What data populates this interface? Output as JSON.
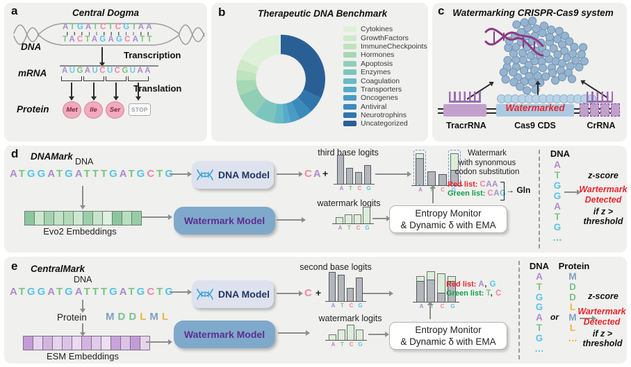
{
  "palette": {
    "A": "#ab8ccb",
    "T": "#7cc47f",
    "G": "#58c4e8",
    "C": "#f0879f",
    "U": "#6fc8e8",
    "M": "#7f9fc0",
    "D": "#7cbf8e",
    "L": "#f0b441",
    "default": "#333333"
  },
  "palette_rna": {
    "A": "#ab8ccb",
    "U": "#6fc8e8",
    "G": "#7cc47f",
    "C": "#f0879f",
    "default": "#333333"
  },
  "panel_a": {
    "label": "a",
    "title": "Central Dogma",
    "dna_label": "DNA",
    "transcription_label": "Transcription",
    "mrna_label": "mRNA",
    "translation_label": "Translation",
    "protein_label": "Protein",
    "dna_top": "ATGATCTCGTAA",
    "dna_bottom": "TACTAGAGCATT",
    "mrna": "AUGAUCUCGUAA",
    "amino_acids": [
      "Met",
      "Ile",
      "Ser"
    ],
    "stop_label": "STOP"
  },
  "panel_b": {
    "label": "b",
    "title": "Therapeutic DNA Benchmark"
  },
  "panel_c": {
    "label": "c",
    "title": "Watermarking CRISPR-Cas9 system",
    "watermarked_label": "Watermarked",
    "tracr_label": "TracrRNA",
    "cas9_label": "Cas9 CDS",
    "cr_label": "CrRNA"
  },
  "panel_d": {
    "label": "d",
    "title": "DNAMark",
    "dna_label": "DNA",
    "sequence": "ATGGATGATTTGATGCTG",
    "embeddings_label": "Evo2 Embeddings",
    "embedding_colors": [
      "#8cc69c",
      "#cde8d1",
      "#a3d3af",
      "#c0e2c5",
      "#b1dbba",
      "#cde8d1",
      "#9bcfa8",
      "#c6e5ca",
      "#def0e0",
      "#8cc69c",
      "#b8dfc0",
      "#97cda5"
    ],
    "dna_model_label": "DNA Model",
    "watermark_model_label": "Watermark Model",
    "prefix": "CA",
    "plus": "+",
    "entropy_line1": "Entropy Monitor",
    "entropy_line2": "& Dynamic δ with EMA",
    "note_line1": "Watermark",
    "note_line2": "with synonmous",
    "note_line3": "codon substitution",
    "red_list_label": "Red list:",
    "red_list": "CAA",
    "green_list_label": "Green list:",
    "green_list": "CAG",
    "gln_arrow": "→",
    "gln_label": "Gln",
    "out_dna_label": "DNA",
    "out_sequence": "ATGGATG…",
    "zscore_label": "z-score",
    "detected_line1": "Wartermark",
    "detected_line2": "Detected",
    "cond_line1": "if z >",
    "cond_line2": "threshold"
  },
  "panel_e": {
    "label": "e",
    "title": "CentralMark",
    "dna_label": "DNA",
    "protein_label": "Protein",
    "sequence": "ATGGATGATTTGATGCTG",
    "protein_sequence": "MDDLML",
    "embeddings_label": "ESM Embeddings",
    "embedding_colors": [
      "#c49bd6",
      "#e6d4ee",
      "#d3b4e0",
      "#e6d4ee",
      "#dcc3e8",
      "#e9daf0",
      "#d3b4e0",
      "#e0cbe9",
      "#ecdff2",
      "#c9a3da",
      "#dcc3e8",
      "#c49bd6",
      "#e6d4ee"
    ],
    "dna_model_label": "DNA Model",
    "watermark_model_label": "Watermark Model",
    "prefix": "C",
    "plus": "+",
    "entropy_line1": "Entropy Monitor",
    "entropy_line2": "& Dynamic δ with EMA",
    "red_list_label": "Red list:",
    "red_list": "A, G",
    "green_list_label": "Green list:",
    "green_list": "T, C",
    "out_dna_label": "DNA",
    "out_protein_label": "Protein",
    "out_dna_sequence": "ATGGATG…",
    "or_label": "or",
    "out_protein_sequence": "MDDLML…",
    "zscore_label": "z-score",
    "detected_line1": "Wartermark",
    "detected_line2": "Detected",
    "cond_line1": "if z >",
    "cond_line2": "threshold"
  },
  "chart_data": [
    {
      "id": "benchmark_donut",
      "type": "pie",
      "subtype": "donut",
      "title": "Therapeutic DNA Benchmark",
      "categories": [
        "Cytokines",
        "GrowthFactors",
        "ImmuneCheckpoints",
        "Hormones",
        "Apoptosis",
        "Enzymes",
        "Coagulation",
        "Transporters",
        "Oncogenes",
        "Antiviral",
        "Neurotrophins",
        "Uncategorized"
      ],
      "values_percent": [
        17.5,
        4,
        4,
        5.5,
        9,
        7.5,
        3.5,
        2.5,
        3.5,
        5,
        6,
        32
      ],
      "colors": [
        "#dff0da",
        "#cfe9c9",
        "#bee3bd",
        "#a6d8b2",
        "#90ceb6",
        "#7cc5be",
        "#68bac7",
        "#57abc9",
        "#4a9cc5",
        "#3c8abc",
        "#3076ab",
        "#2a5f96"
      ],
      "start": "top",
      "direction": "counterclockwise",
      "hole_ratio": 0.56,
      "legend_position": "right"
    },
    {
      "id": "d_third",
      "type": "bar",
      "title": "third base logits",
      "categories": [
        "A",
        "T",
        "C",
        "G"
      ],
      "values": [
        1.0,
        0.55,
        0.4,
        0.65
      ],
      "style": "gray",
      "ylim": [
        0,
        1
      ]
    },
    {
      "id": "d_watermark",
      "type": "bar",
      "title": "watermark logits",
      "categories": [
        "A",
        "T",
        "C",
        "G"
      ],
      "values": [
        0.3,
        0.45,
        0.45,
        0.8
      ],
      "style": "green",
      "ylim": [
        0,
        1
      ]
    },
    {
      "id": "d_combined",
      "type": "stacked-bar",
      "categories": [
        "A",
        "T",
        "C",
        "G"
      ],
      "series": [
        {
          "name": "model logits",
          "values": [
            0.8,
            0.42,
            0.33,
            0.43
          ]
        },
        {
          "name": "watermark logits",
          "values": [
            0.14,
            0,
            0,
            0.5
          ]
        }
      ],
      "dashed": [
        true,
        false,
        false,
        true
      ]
    },
    {
      "id": "e_second",
      "type": "bar",
      "title": "second base logits",
      "categories": [
        "A",
        "T",
        "C",
        "G"
      ],
      "values": [
        1.0,
        0.9,
        0.45,
        0.82
      ],
      "style": "gray",
      "ylim": [
        0,
        1
      ]
    },
    {
      "id": "e_watermark",
      "type": "bar",
      "title": "watermark logits",
      "categories": [
        "A",
        "T",
        "C",
        "G"
      ],
      "values": [
        0.3,
        0.55,
        0.8,
        0.55
      ],
      "style": "green",
      "ylim": [
        0,
        1
      ]
    },
    {
      "id": "e_combined",
      "type": "stacked-bar",
      "categories": [
        "A",
        "T",
        "C",
        "G"
      ],
      "series": [
        {
          "name": "model logits",
          "values": [
            0.62,
            0.66,
            0.28,
            0.62
          ]
        },
        {
          "name": "watermark logits",
          "values": [
            0.15,
            0.25,
            0.58,
            0.16
          ]
        }
      ],
      "dashed": [
        false,
        false,
        false,
        false
      ]
    }
  ]
}
